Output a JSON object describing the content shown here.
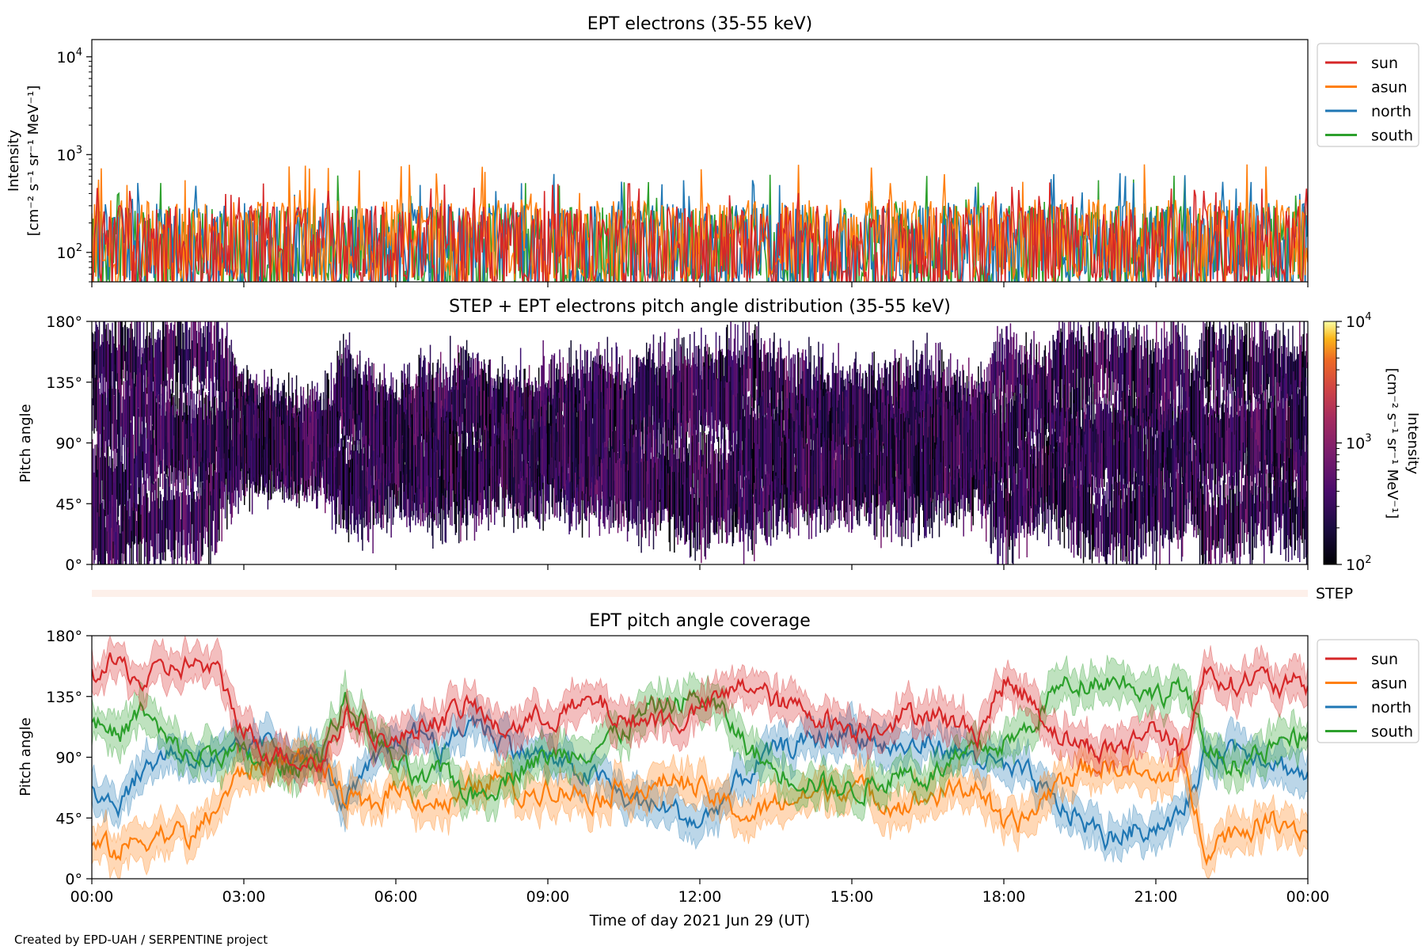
{
  "footer": {
    "credit": "Created by EPD-UAH / SERPENTINE project"
  },
  "chart_data": [
    {
      "type": "line",
      "title": "EPT electrons (35-55 keV)",
      "ylabel_line1": "Intensity",
      "ylabel_line2": "[cm⁻² s⁻¹ sr⁻¹ MeV⁻¹]",
      "yscale": "log",
      "ylim": [
        50,
        15000
      ],
      "yticks": [
        {
          "value": 100,
          "base": "10",
          "exp": "2"
        },
        {
          "value": 1000,
          "base": "10",
          "exp": "3"
        },
        {
          "value": 10000,
          "base": "10",
          "exp": "4"
        }
      ],
      "xlim_hours": [
        0,
        24
      ],
      "legend": "outside-right",
      "series": [
        {
          "name": "sun",
          "color": "#d62728",
          "typical_low": 55,
          "typical_high": 300,
          "max": 520
        },
        {
          "name": "asun",
          "color": "#ff7f0e",
          "typical_low": 70,
          "typical_high": 350,
          "max": 800
        },
        {
          "name": "north",
          "color": "#1f77b4",
          "typical_low": 60,
          "typical_high": 320,
          "max": 650
        },
        {
          "name": "south",
          "color": "#2ca02c",
          "typical_low": 55,
          "typical_high": 300,
          "max": 650
        }
      ]
    },
    {
      "type": "heatmap",
      "title": "STEP + EPT electrons pitch angle distribution (35-55 keV)",
      "ylabel": "Pitch angle",
      "ylim": [
        0,
        180
      ],
      "yticks": [
        "0°",
        "45°",
        "90°",
        "135°",
        "180°"
      ],
      "xlim_hours": [
        0,
        24
      ],
      "colorbar": {
        "label": "Intensity",
        "units": "[cm⁻² s⁻¹ sr⁻¹ MeV⁻¹]",
        "scale": "log",
        "range": [
          100,
          10000
        ],
        "ticks": [
          {
            "value": 100,
            "base": "10",
            "exp": "2"
          },
          {
            "value": 1000,
            "base": "10",
            "exp": "3"
          },
          {
            "value": 10000,
            "base": "10",
            "exp": "4"
          }
        ],
        "colormap": "inferno"
      }
    },
    {
      "type": "heatmap",
      "label": "STEP",
      "xlim_hours": [
        0,
        24
      ]
    },
    {
      "type": "line",
      "title": "EPT pitch angle coverage",
      "ylabel": "Pitch angle",
      "xlabel": "Time of day 2021 Jun 29 (UT)",
      "ylim": [
        0,
        180
      ],
      "yticks": [
        "0°",
        "45°",
        "90°",
        "135°",
        "180°"
      ],
      "xlim_hours": [
        0,
        24
      ],
      "xticks": [
        "00:00",
        "03:00",
        "06:00",
        "09:00",
        "12:00",
        "15:00",
        "18:00",
        "21:00",
        "00:00"
      ],
      "legend": "outside-right",
      "series": [
        {
          "name": "sun",
          "color": "#d62728",
          "x_hours": [
            0,
            0.5,
            1,
            1.5,
            2,
            2.5,
            3,
            3.5,
            4,
            4.5,
            5,
            5.5,
            6,
            6.5,
            7,
            7.5,
            8,
            8.5,
            9,
            9.5,
            10,
            10.5,
            11,
            11.5,
            12,
            12.5,
            13,
            13.5,
            14,
            14.5,
            15,
            15.5,
            16,
            16.5,
            17,
            17.5,
            18,
            18.5,
            19,
            19.5,
            20,
            20.5,
            21,
            21.5,
            22,
            22.5,
            23,
            23.5,
            24
          ],
          "values": [
            150,
            160,
            145,
            155,
            160,
            150,
            110,
            95,
            90,
            85,
            120,
            110,
            100,
            115,
            120,
            130,
            110,
            115,
            120,
            125,
            130,
            115,
            120,
            115,
            125,
            135,
            145,
            130,
            125,
            120,
            110,
            115,
            120,
            125,
            115,
            110,
            145,
            135,
            110,
            100,
            95,
            100,
            115,
            90,
            155,
            145,
            150,
            140,
            145
          ]
        },
        {
          "name": "asun",
          "color": "#ff7f0e",
          "x_hours": [
            0,
            0.5,
            1,
            1.5,
            2,
            2.5,
            3,
            3.5,
            4,
            4.5,
            5,
            5.5,
            6,
            6.5,
            7,
            7.5,
            8,
            8.5,
            9,
            9.5,
            10,
            10.5,
            11,
            11.5,
            12,
            12.5,
            13,
            13.5,
            14,
            14.5,
            15,
            15.5,
            16,
            16.5,
            17,
            17.5,
            18,
            18.5,
            19,
            19.5,
            20,
            20.5,
            21,
            21.5,
            22,
            22.5,
            23,
            23.5,
            24
          ],
          "values": [
            25,
            20,
            30,
            35,
            30,
            55,
            80,
            85,
            90,
            85,
            60,
            50,
            70,
            60,
            55,
            65,
            75,
            60,
            70,
            65,
            60,
            70,
            65,
            75,
            65,
            55,
            45,
            55,
            60,
            65,
            70,
            60,
            55,
            60,
            65,
            70,
            35,
            45,
            70,
            80,
            85,
            80,
            70,
            85,
            25,
            35,
            40,
            45,
            35
          ]
        },
        {
          "name": "north",
          "color": "#1f77b4",
          "x_hours": [
            0,
            0.5,
            1,
            1.5,
            2,
            2.5,
            3,
            3.5,
            4,
            4.5,
            5,
            5.5,
            6,
            6.5,
            7,
            7.5,
            8,
            8.5,
            9,
            9.5,
            10,
            10.5,
            11,
            11.5,
            12,
            12.5,
            13,
            13.5,
            14,
            14.5,
            15,
            15.5,
            16,
            16.5,
            17,
            17.5,
            18,
            18.5,
            19,
            19.5,
            20,
            20.5,
            21,
            21.5,
            22,
            22.5,
            23,
            23.5,
            24
          ],
          "values": [
            70,
            55,
            80,
            95,
            90,
            85,
            95,
            100,
            95,
            90,
            55,
            80,
            100,
            110,
            95,
            120,
            105,
            95,
            90,
            80,
            75,
            60,
            55,
            50,
            40,
            60,
            80,
            95,
            100,
            105,
            110,
            100,
            95,
            100,
            95,
            90,
            80,
            75,
            55,
            45,
            30,
            35,
            40,
            45,
            90,
            100,
            95,
            85,
            75
          ]
        },
        {
          "name": "south",
          "color": "#2ca02c",
          "x_hours": [
            0,
            0.5,
            1,
            1.5,
            2,
            2.5,
            3,
            3.5,
            4,
            4.5,
            5,
            5.5,
            6,
            6.5,
            7,
            7.5,
            8,
            8.5,
            9,
            9.5,
            10,
            10.5,
            11,
            11.5,
            12,
            12.5,
            13,
            13.5,
            14,
            14.5,
            15,
            15.5,
            16,
            16.5,
            17,
            17.5,
            18,
            18.5,
            19,
            19.5,
            20,
            20.5,
            21,
            21.5,
            22,
            22.5,
            23,
            23.5,
            24
          ],
          "values": [
            120,
            105,
            125,
            100,
            90,
            95,
            90,
            85,
            80,
            95,
            130,
            110,
            85,
            70,
            80,
            60,
            70,
            85,
            90,
            95,
            100,
            110,
            125,
            130,
            135,
            120,
            95,
            80,
            75,
            70,
            65,
            70,
            80,
            75,
            85,
            95,
            100,
            110,
            140,
            145,
            150,
            145,
            135,
            145,
            95,
            85,
            90,
            100,
            105
          ]
        }
      ]
    }
  ]
}
